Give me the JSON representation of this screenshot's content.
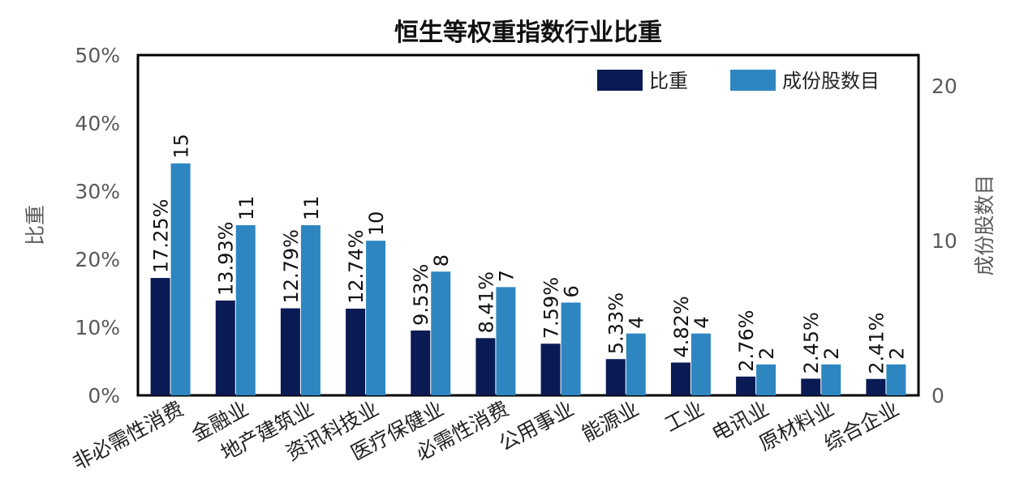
{
  "chart_data": {
    "type": "bar",
    "title": "恒生等权重指数行业比重",
    "categories": [
      "非必需性消费",
      "金融业",
      "地产建筑业",
      "资讯科技业",
      "医疗保健业",
      "必需性消费",
      "公用事业",
      "能源业",
      "工业",
      "电讯业",
      "原材料业",
      "综合企业"
    ],
    "series": [
      {
        "name": "比重",
        "axis": "left",
        "color": "#0a1a54",
        "values": [
          17.25,
          13.93,
          12.79,
          12.74,
          9.53,
          8.41,
          7.59,
          5.33,
          4.82,
          2.76,
          2.45,
          2.41
        ],
        "labels": [
          "17.25%",
          "13.93%",
          "12.79%",
          "12.74%",
          "9.53%",
          "8.41%",
          "7.59%",
          "5.33%",
          "4.82%",
          "2.76%",
          "2.45%",
          "2.41%"
        ]
      },
      {
        "name": "成份股数目",
        "axis": "right",
        "color": "#2e86c1",
        "values": [
          15,
          11,
          11,
          10,
          8,
          7,
          6,
          4,
          4,
          2,
          2,
          2
        ],
        "labels": [
          "15",
          "11",
          "11",
          "10",
          "8",
          "7",
          "6",
          "4",
          "4",
          "2",
          "2",
          "2"
        ]
      }
    ],
    "y_left": {
      "label": "比重",
      "ylim": [
        0,
        50
      ],
      "ticks": [
        0,
        10,
        20,
        30,
        40,
        50
      ],
      "tick_labels": [
        "0%",
        "10%",
        "20%",
        "30%",
        "40%",
        "50%"
      ]
    },
    "y_right": {
      "label": "成份股数目",
      "ylim": [
        0,
        22
      ],
      "ticks": [
        0,
        10,
        20
      ],
      "tick_labels": [
        "0",
        "10",
        "20"
      ]
    },
    "legend": {
      "position": "top-right"
    },
    "grid": false
  }
}
